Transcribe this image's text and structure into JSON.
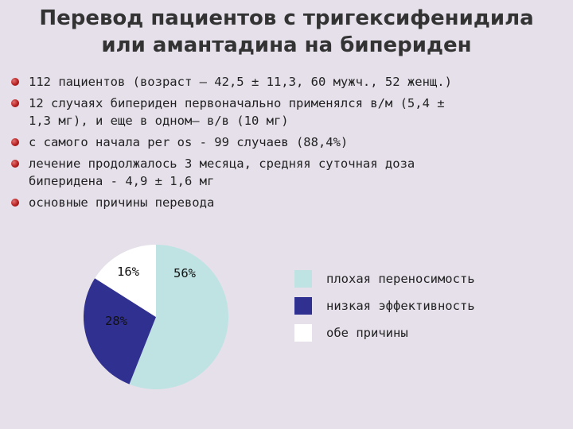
{
  "title_line1": "Перевод пациентов с тригексифенидила",
  "title_line2": "или амантадина на бипериден",
  "bullets": [
    {
      "line1": "112 пациентов (возраст – 42,5 ± 11,3, 60 мужч., 52 женщ.)",
      "line2": ""
    },
    {
      "line1": "12 случаях бипериден первоначально применялся в/м (5,4 ±",
      "line2": "1,3 мг), и еще в одном– в/в (10 мг)"
    },
    {
      "line1": "с самого начала per os - 99 случаев (88,4%)",
      "line2": ""
    },
    {
      "line1": "лечение продолжалось 3 месяца, средняя суточная доза",
      "line2": "биперидена - 4,9 ± 1,6 мг"
    },
    {
      "line1": "основные причины перевода",
      "line2": ""
    }
  ],
  "chart_data": {
    "type": "pie",
    "categories": [
      "плохая переносимость",
      "низкая эффективность",
      "обе причины"
    ],
    "values": [
      56,
      28,
      16
    ],
    "labels": [
      "56%",
      "28%",
      "16%"
    ],
    "colors": [
      "#bfe3e3",
      "#303090",
      "#ffffff"
    ],
    "start_angle_deg": 0,
    "legend_position": "right"
  }
}
